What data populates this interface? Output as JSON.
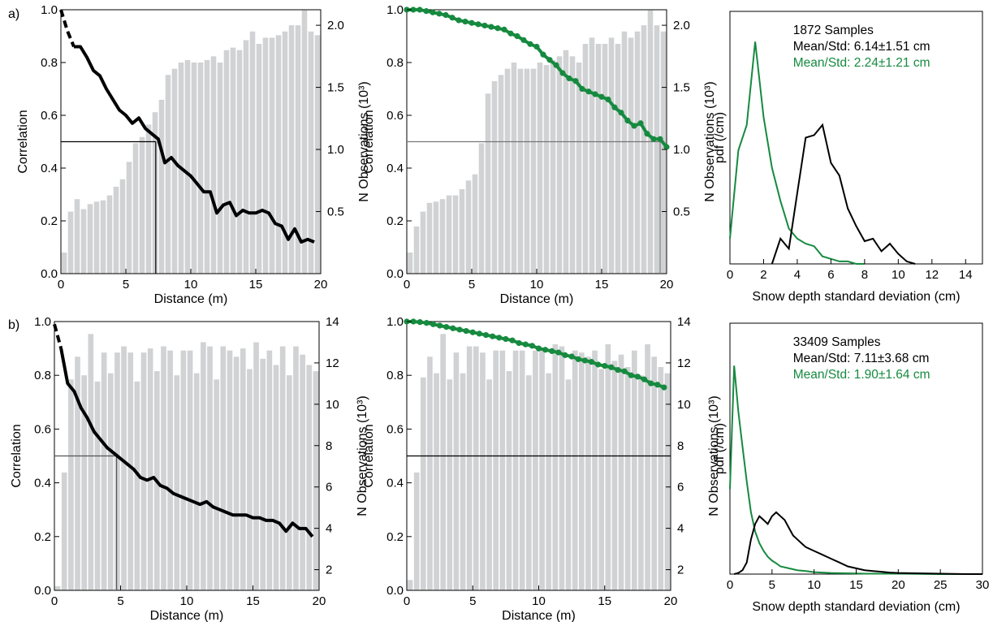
{
  "panel_labels": [
    "a)",
    "b)"
  ],
  "chart_data": [
    {
      "id": "a1",
      "type": "bar+line",
      "row": 0,
      "col": 0,
      "xlabel": "Distance (m)",
      "ylabel": "Correlation",
      "y2label": "N Observations (10³)",
      "xlim": [
        0,
        20
      ],
      "ylim": [
        0,
        1
      ],
      "y2lim": [
        0,
        2.125
      ],
      "xticks": [
        0,
        5,
        10,
        15,
        20
      ],
      "yticks": [
        0.0,
        0.2,
        0.4,
        0.6,
        0.8,
        1.0
      ],
      "y2ticks": [
        0.5,
        1.0,
        1.5,
        2.0
      ],
      "bar_color": "#d0d2d4",
      "line_color": "#000000",
      "bars_x": [
        0.25,
        0.75,
        1.25,
        1.75,
        2.25,
        2.75,
        3.25,
        3.75,
        4.25,
        4.75,
        5.25,
        5.75,
        6.25,
        6.75,
        7.25,
        7.75,
        8.25,
        8.75,
        9.25,
        9.75,
        10.25,
        10.75,
        11.25,
        11.75,
        12.25,
        12.75,
        13.25,
        13.75,
        14.25,
        14.75,
        15.25,
        15.75,
        16.25,
        16.75,
        17.25,
        17.75,
        18.25,
        18.75,
        19.25,
        19.75
      ],
      "bars_y": [
        0.17,
        0.5,
        0.6,
        0.52,
        0.56,
        0.58,
        0.59,
        0.63,
        0.7,
        0.76,
        0.9,
        1.05,
        1.1,
        1.2,
        1.3,
        1.4,
        1.6,
        1.65,
        1.7,
        1.72,
        1.7,
        1.7,
        1.72,
        1.75,
        1.7,
        1.8,
        1.82,
        1.8,
        1.88,
        1.95,
        1.85,
        1.9,
        1.9,
        1.92,
        1.95,
        2.0,
        2.0,
        2.12,
        1.95,
        1.92
      ],
      "line_x": [
        0,
        0.5,
        1,
        1.5,
        2,
        2.5,
        3,
        3.5,
        4,
        4.5,
        5,
        5.5,
        6,
        6.5,
        7,
        7.5,
        8,
        8.5,
        9,
        9.5,
        10,
        10.5,
        11,
        11.5,
        12,
        12.5,
        13,
        13.5,
        14,
        14.5,
        15,
        15.5,
        16,
        16.5,
        17,
        17.5,
        18,
        18.5,
        19,
        19.5
      ],
      "line_y": [
        1.0,
        0.92,
        0.86,
        0.86,
        0.82,
        0.77,
        0.75,
        0.7,
        0.66,
        0.62,
        0.6,
        0.57,
        0.59,
        0.55,
        0.53,
        0.51,
        0.42,
        0.44,
        0.41,
        0.39,
        0.37,
        0.34,
        0.31,
        0.31,
        0.23,
        0.26,
        0.27,
        0.22,
        0.24,
        0.23,
        0.23,
        0.24,
        0.23,
        0.19,
        0.18,
        0.13,
        0.17,
        0.12,
        0.13,
        0.12
      ],
      "dashed_until_x": 1,
      "markers": false,
      "ref_y": 0.5,
      "ref_x": 7.3,
      "ref_line_color": "#000000"
    },
    {
      "id": "a2",
      "type": "bar+line",
      "row": 0,
      "col": 1,
      "xlabel": "Distance (m)",
      "ylabel": "Correlation",
      "y2label": "N Observations (10³)",
      "xlim": [
        0,
        20
      ],
      "ylim": [
        0,
        1
      ],
      "y2lim": [
        0,
        2.125
      ],
      "xticks": [
        0,
        5,
        10,
        15,
        20
      ],
      "yticks": [
        0.0,
        0.2,
        0.4,
        0.6,
        0.8,
        1.0
      ],
      "y2ticks": [
        0.5,
        1.0,
        1.5,
        2.0
      ],
      "bar_color": "#d0d2d4",
      "line_color": "#168a3f",
      "bars_x": [
        0.25,
        0.75,
        1.25,
        1.75,
        2.25,
        2.75,
        3.25,
        3.75,
        4.25,
        4.75,
        5.25,
        5.75,
        6.25,
        6.75,
        7.25,
        7.75,
        8.25,
        8.75,
        9.25,
        9.75,
        10.25,
        10.75,
        11.25,
        11.75,
        12.25,
        12.75,
        13.25,
        13.75,
        14.25,
        14.75,
        15.25,
        15.75,
        16.25,
        16.75,
        17.25,
        17.75,
        18.25,
        18.75,
        19.25,
        19.75
      ],
      "bars_y": [
        0.17,
        0.38,
        0.5,
        0.57,
        0.58,
        0.6,
        0.63,
        0.63,
        0.68,
        0.75,
        0.8,
        1.05,
        1.45,
        1.55,
        1.6,
        1.65,
        1.7,
        1.65,
        1.65,
        1.65,
        1.7,
        1.68,
        1.72,
        1.75,
        1.8,
        1.75,
        1.7,
        1.85,
        1.9,
        1.85,
        1.85,
        1.9,
        1.85,
        1.95,
        1.9,
        1.95,
        2.0,
        2.12,
        2.0,
        1.95
      ],
      "line_x": [
        0,
        0.5,
        1,
        1.5,
        2,
        2.5,
        3,
        3.5,
        4,
        4.5,
        5,
        5.5,
        6,
        6.5,
        7,
        7.5,
        8,
        8.5,
        9,
        9.5,
        10,
        10.5,
        11,
        11.5,
        12,
        12.5,
        13,
        13.5,
        14,
        14.5,
        15,
        15.5,
        16,
        16.5,
        17,
        17.5,
        18,
        18.5,
        19,
        19.5,
        20
      ],
      "line_y": [
        1.0,
        1.0,
        1.0,
        0.995,
        0.99,
        0.985,
        0.98,
        0.97,
        0.96,
        0.955,
        0.95,
        0.945,
        0.94,
        0.935,
        0.93,
        0.925,
        0.91,
        0.9,
        0.885,
        0.87,
        0.86,
        0.83,
        0.81,
        0.79,
        0.76,
        0.74,
        0.73,
        0.7,
        0.69,
        0.68,
        0.67,
        0.66,
        0.63,
        0.61,
        0.58,
        0.56,
        0.57,
        0.53,
        0.51,
        0.51,
        0.48
      ],
      "dashed_until_x": 0,
      "markers": true,
      "ref_y": 0.5,
      "ref_x": 19.5,
      "ref_line_color": "#777777"
    },
    {
      "id": "a3",
      "type": "line",
      "row": 0,
      "col": 2,
      "xlabel": "Snow depth standard deviation (cm)",
      "ylabel": "pdf (/cm)",
      "xlim": [
        0,
        15
      ],
      "ylim": [
        0,
        1.0
      ],
      "xticks": [
        0,
        2,
        4,
        6,
        8,
        10,
        12,
        14
      ],
      "annotations": [
        "1872 Samples",
        "Mean/Std: 6.14±1.51 cm",
        "Mean/Std: 2.24±1.21 cm"
      ],
      "annotation_colors": [
        "#000000",
        "#000000",
        "#168a3f"
      ],
      "series": [
        {
          "color": "#168a3f",
          "x": [
            0,
            0.5,
            1,
            1.5,
            2,
            2.5,
            3,
            3.5,
            4,
            4.5,
            5,
            5.5,
            6,
            6.5,
            7,
            7.5,
            8
          ],
          "y": [
            0.1,
            0.45,
            0.55,
            0.88,
            0.58,
            0.38,
            0.25,
            0.14,
            0.1,
            0.08,
            0.07,
            0.03,
            0.02,
            0.01,
            0.01,
            0,
            0
          ]
        },
        {
          "color": "#000000",
          "x": [
            2.5,
            3,
            3.5,
            4,
            4.5,
            5,
            5.5,
            6,
            6.5,
            7,
            7.5,
            8,
            8.5,
            9,
            9.5,
            10,
            10.5,
            11
          ],
          "y": [
            0,
            0.1,
            0.06,
            0.28,
            0.5,
            0.51,
            0.55,
            0.4,
            0.35,
            0.22,
            0.15,
            0.09,
            0.1,
            0.05,
            0.08,
            0.04,
            0.01,
            0
          ]
        }
      ]
    },
    {
      "id": "b1",
      "type": "bar+line",
      "row": 1,
      "col": 0,
      "xlabel": "Distance (m)",
      "ylabel": "Correlation",
      "y2label": "N Observations (10³)",
      "xlim": [
        0,
        20
      ],
      "ylim": [
        0,
        1
      ],
      "y2lim": [
        1,
        14
      ],
      "xticks": [
        0,
        5,
        10,
        15,
        20
      ],
      "yticks": [
        0.0,
        0.2,
        0.4,
        0.6,
        0.8,
        1.0
      ],
      "y2ticks": [
        2,
        4,
        6,
        8,
        10,
        12,
        14
      ],
      "bar_color": "#d0d2d4",
      "line_color": "#000000",
      "bars_x": [
        0.25,
        0.75,
        1.25,
        1.75,
        2.25,
        2.75,
        3.25,
        3.75,
        4.25,
        4.75,
        5.25,
        5.75,
        6.25,
        6.75,
        7.25,
        7.75,
        8.25,
        8.75,
        9.25,
        9.75,
        10.25,
        10.75,
        11.25,
        11.75,
        12.25,
        12.75,
        13.25,
        13.75,
        14.25,
        14.75,
        15.25,
        15.75,
        16.25,
        16.75,
        17.25,
        17.75,
        18.25,
        18.75,
        19.25,
        19.75
      ],
      "bars_y": [
        1.2,
        6.7,
        11.2,
        12.3,
        11.4,
        13.4,
        11.1,
        12.5,
        11.5,
        12.5,
        12.8,
        12.5,
        11.1,
        12.5,
        12.7,
        11.6,
        12.8,
        12.6,
        11.4,
        12.6,
        12.6,
        11.5,
        13.0,
        12.8,
        11.2,
        12.8,
        12.6,
        12.3,
        12.7,
        11.7,
        13.0,
        12.2,
        12.6,
        11.9,
        12.8,
        11.4,
        12.8,
        12.4,
        11.9,
        11.6
      ],
      "line_x": [
        0,
        0.5,
        1,
        1.5,
        2,
        2.5,
        3,
        3.5,
        4,
        4.5,
        5,
        5.5,
        6,
        6.5,
        7,
        7.5,
        8,
        8.5,
        9,
        9.5,
        10,
        10.5,
        11,
        11.5,
        12,
        12.5,
        13,
        13.5,
        14,
        14.5,
        15,
        15.5,
        16,
        16.5,
        17,
        17.5,
        18,
        18.5,
        19,
        19.5
      ],
      "line_y": [
        0.99,
        0.9,
        0.77,
        0.74,
        0.68,
        0.64,
        0.59,
        0.56,
        0.53,
        0.51,
        0.49,
        0.47,
        0.45,
        0.42,
        0.41,
        0.42,
        0.39,
        0.38,
        0.36,
        0.35,
        0.34,
        0.33,
        0.32,
        0.33,
        0.31,
        0.3,
        0.29,
        0.28,
        0.28,
        0.28,
        0.27,
        0.27,
        0.26,
        0.26,
        0.25,
        0.22,
        0.25,
        0.23,
        0.23,
        0.2
      ],
      "dashed_until_x": 0.5,
      "markers": false,
      "ref_y": 0.5,
      "ref_x": 4.7,
      "ref_line_color": "#555555"
    },
    {
      "id": "b2",
      "type": "bar+line",
      "row": 1,
      "col": 1,
      "xlabel": "Distance (m)",
      "ylabel": "Correlation",
      "y2label": "N Observations (10³)",
      "xlim": [
        0,
        20
      ],
      "ylim": [
        0,
        1
      ],
      "y2lim": [
        1,
        14
      ],
      "xticks": [
        0,
        5,
        10,
        15,
        20
      ],
      "yticks": [
        0.0,
        0.2,
        0.4,
        0.6,
        0.8,
        1.0
      ],
      "y2ticks": [
        2,
        4,
        6,
        8,
        10,
        12,
        14
      ],
      "bar_color": "#d0d2d4",
      "line_color": "#168a3f",
      "bars_x": [
        0.25,
        0.75,
        1.25,
        1.75,
        2.25,
        2.75,
        3.25,
        3.75,
        4.25,
        4.75,
        5.25,
        5.75,
        6.25,
        6.75,
        7.25,
        7.75,
        8.25,
        8.75,
        9.25,
        9.75,
        10.25,
        10.75,
        11.25,
        11.75,
        12.25,
        12.75,
        13.25,
        13.75,
        14.25,
        14.75,
        15.25,
        15.75,
        16.25,
        16.75,
        17.25,
        17.75,
        18.25,
        18.75,
        19.25,
        19.75
      ],
      "bars_y": [
        1.5,
        6.7,
        11.3,
        12.3,
        11.5,
        13.4,
        11.2,
        12.5,
        11.5,
        12.8,
        12.8,
        12.5,
        11.2,
        12.6,
        12.6,
        11.6,
        12.6,
        12.6,
        11.4,
        12.6,
        12.6,
        11.5,
        12.9,
        12.8,
        11.2,
        12.6,
        12.5,
        12.3,
        12.6,
        11.7,
        12.9,
        12.1,
        12.4,
        11.8,
        12.6,
        11.4,
        12.9,
        12.3,
        11.8,
        11.5
      ],
      "line_x": [
        0,
        0.5,
        1,
        1.5,
        2,
        2.5,
        3,
        3.5,
        4,
        4.5,
        5,
        5.5,
        6,
        6.5,
        7,
        7.5,
        8,
        8.5,
        9,
        9.5,
        10,
        10.5,
        11,
        11.5,
        12,
        12.5,
        13,
        13.5,
        14,
        14.5,
        15,
        15.5,
        16,
        16.5,
        17,
        17.5,
        18,
        18.5,
        19,
        19.5
      ],
      "line_y": [
        1.0,
        1.0,
        0.998,
        0.995,
        0.99,
        0.985,
        0.98,
        0.975,
        0.97,
        0.965,
        0.96,
        0.955,
        0.95,
        0.945,
        0.94,
        0.935,
        0.93,
        0.92,
        0.915,
        0.91,
        0.9,
        0.895,
        0.89,
        0.885,
        0.875,
        0.87,
        0.86,
        0.855,
        0.85,
        0.84,
        0.835,
        0.83,
        0.82,
        0.815,
        0.8,
        0.795,
        0.785,
        0.77,
        0.765,
        0.755
      ],
      "dashed_until_x": 0,
      "markers": true,
      "ref_y": 0.5,
      "ref_x": null,
      "ref_line_color": "#000000"
    },
    {
      "id": "b3",
      "type": "line",
      "row": 1,
      "col": 2,
      "xlabel": "Snow depth standard deviation (cm)",
      "ylabel": "pdf (/cm)",
      "xlim": [
        0,
        30
      ],
      "ylim": [
        0,
        0.65
      ],
      "xticks": [
        0,
        5,
        10,
        15,
        20,
        25,
        30
      ],
      "annotations": [
        "33409 Samples",
        "Mean/Std: 7.11±3.68 cm",
        "Mean/Std: 1.90±1.64 cm"
      ],
      "annotation_colors": [
        "#000000",
        "#000000",
        "#168a3f"
      ],
      "series": [
        {
          "color": "#168a3f",
          "x": [
            0,
            0.5,
            1,
            1.5,
            2,
            2.5,
            3,
            3.5,
            4,
            4.5,
            5,
            5.5,
            6,
            7,
            8,
            9,
            10,
            11,
            12,
            14,
            16,
            18,
            20,
            25,
            30
          ],
          "y": [
            0.22,
            0.54,
            0.42,
            0.33,
            0.24,
            0.16,
            0.11,
            0.08,
            0.06,
            0.045,
            0.035,
            0.028,
            0.02,
            0.015,
            0.01,
            0.008,
            0.005,
            0.004,
            0.003,
            0.002,
            0.001,
            0.001,
            0.001,
            0,
            0
          ]
        },
        {
          "color": "#000000",
          "x": [
            0.5,
            1,
            1.5,
            2,
            2.5,
            3,
            3.5,
            4,
            4.5,
            5,
            5.5,
            6,
            6.5,
            7,
            7.5,
            8,
            8.5,
            9,
            9.5,
            10,
            11,
            12,
            13,
            14,
            15,
            16,
            17,
            18,
            19,
            20,
            22,
            25,
            28,
            30
          ],
          "y": [
            0,
            0.003,
            0.01,
            0.03,
            0.09,
            0.13,
            0.15,
            0.14,
            0.13,
            0.15,
            0.16,
            0.15,
            0.14,
            0.12,
            0.1,
            0.09,
            0.08,
            0.07,
            0.065,
            0.06,
            0.05,
            0.04,
            0.03,
            0.02,
            0.015,
            0.01,
            0.008,
            0.006,
            0.004,
            0.003,
            0.002,
            0.001,
            0,
            0
          ]
        }
      ]
    }
  ]
}
